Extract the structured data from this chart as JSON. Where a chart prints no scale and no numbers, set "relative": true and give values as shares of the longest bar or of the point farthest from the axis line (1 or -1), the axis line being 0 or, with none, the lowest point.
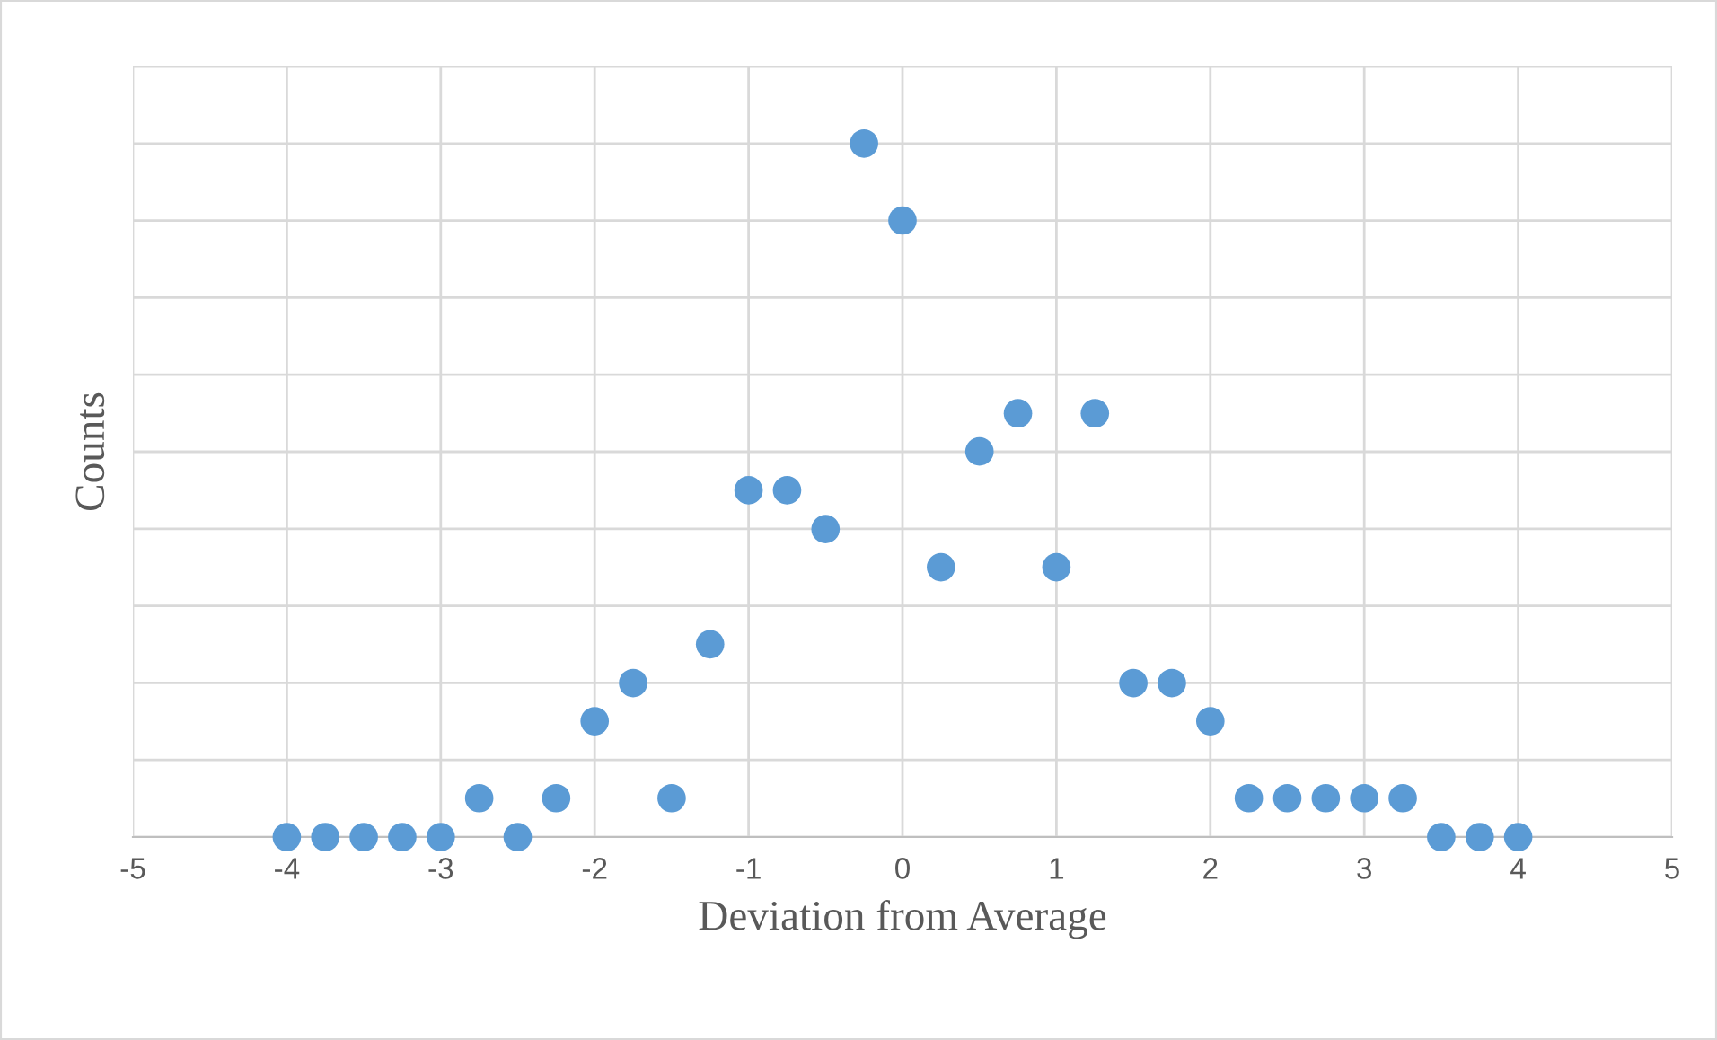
{
  "chart_data": {
    "type": "scatter",
    "xlabel": "Deviation from Average",
    "ylabel": "Counts",
    "relative": true,
    "x": [
      -4,
      -3.75,
      -3.5,
      -3.25,
      -3,
      -2.75,
      -2.5,
      -2.25,
      -2,
      -1.75,
      -1.5,
      -1.25,
      -1,
      -0.75,
      -0.5,
      -0.25,
      0,
      0.25,
      0.5,
      0.75,
      1,
      1.25,
      1.5,
      1.75,
      2,
      2.25,
      2.5,
      2.75,
      3,
      3.25,
      3.5,
      3.75,
      4
    ],
    "series": [
      {
        "color": "#5b9bd5",
        "values": [
          0,
          0,
          0,
          0,
          0,
          0.056,
          0,
          0.056,
          0.167,
          0.222,
          0.056,
          0.278,
          0.5,
          0.5,
          0.444,
          1,
          0.889,
          0.389,
          0.556,
          0.611,
          0.389,
          0.611,
          0.222,
          0.222,
          0.167,
          0.056,
          0.056,
          0.056,
          0.056,
          0.056,
          0,
          0,
          0
        ]
      }
    ],
    "xlim": [
      -5,
      5
    ],
    "xticks": [
      -5,
      -4,
      -3,
      -2,
      -1,
      0,
      1,
      2,
      3,
      4,
      5
    ],
    "tick_labels": "x",
    "grid": true,
    "marker": "circle"
  }
}
